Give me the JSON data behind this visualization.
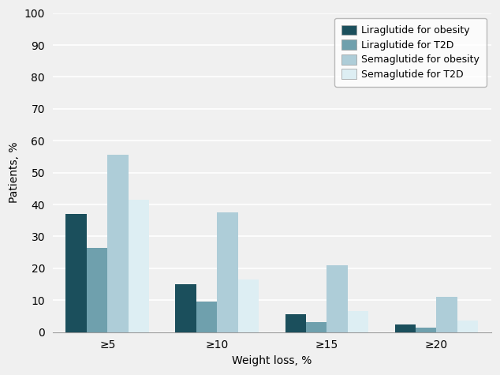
{
  "categories": [
    "≥5",
    "≥10",
    "≥15",
    "≥20"
  ],
  "series": {
    "Liraglutide for obesity": [
      37,
      15,
      5.5,
      2.5
    ],
    "Liraglutide for T2D": [
      26.5,
      9.5,
      3,
      1.5
    ],
    "Semaglutide for obesity": [
      55.5,
      37.5,
      21,
      11
    ],
    "Semaglutide for T2D": [
      41.5,
      16.5,
      6.5,
      3.5
    ]
  },
  "colors": {
    "Liraglutide for obesity": "#1b4f5c",
    "Liraglutide for T2D": "#6fa0ad",
    "Semaglutide for obesity": "#aecdd8",
    "Semaglutide for T2D": "#ddeef3"
  },
  "ylabel": "Patients, %",
  "xlabel": "Weight loss, %",
  "ylim": [
    0,
    100
  ],
  "yticks": [
    0,
    10,
    20,
    30,
    40,
    50,
    60,
    70,
    80,
    90,
    100
  ],
  "background_color": "#f0f0f0",
  "bar_width": 0.19,
  "group_positions": [
    0.4,
    1.4,
    2.4,
    3.4
  ]
}
